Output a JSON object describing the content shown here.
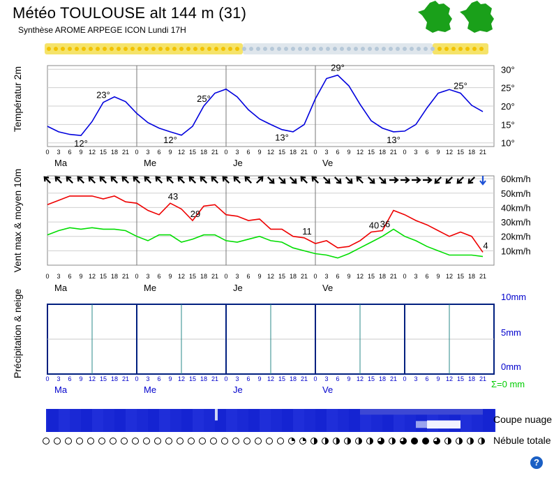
{
  "header": {
    "title": "Météo TOULOUSE alt 144 m (31)",
    "subtitle": "Synthèse AROME ARPEGE ICON  Lundi 17H"
  },
  "labels": {
    "temp_axis": "Températur 2m",
    "wind_axis": "Vent max & moyen 10m",
    "precip_axis": "Précipitation & neige",
    "cloud_section": "Coupe nuage",
    "nebula_section": "Nébule totale",
    "precip_total": "Σ=0 mm",
    "help": "?"
  },
  "days": [
    "Ma",
    "Me",
    "Je",
    "Ve"
  ],
  "hour_ticks": [
    "0",
    "3",
    "6",
    "9",
    "12",
    "15",
    "18",
    "21"
  ],
  "colors": {
    "temperature": "#0000dd",
    "wind_max": "#ee0000",
    "wind_mean": "#00dd00",
    "precip_frame": "#001f7f",
    "precip_labels": "#0000cc",
    "precip_total": "#00cc00",
    "cloud_dark": "#1a2bd8",
    "map_green": "#1aa01a"
  },
  "chart_data": [
    {
      "type": "line",
      "name": "temperature",
      "ylabel": "Températur 2m",
      "y_tick_labels": [
        "30°",
        "25°",
        "20°",
        "15°",
        "10°"
      ],
      "ylim": [
        9,
        31
      ],
      "x_unit": "hours",
      "x": [
        0,
        3,
        6,
        9,
        12,
        15,
        18,
        21,
        24,
        27,
        30,
        33,
        36,
        39,
        42,
        45,
        48,
        51,
        54,
        57,
        60,
        63,
        66,
        69,
        72,
        75,
        78,
        81,
        84,
        87,
        90,
        93,
        96,
        99,
        102,
        105,
        108,
        111,
        114,
        117
      ],
      "values": [
        14.5,
        13,
        12.3,
        12,
        15.8,
        21,
        22.5,
        21.2,
        18,
        15.5,
        14,
        13,
        12.1,
        14.5,
        20,
        23.5,
        24.6,
        22.5,
        19,
        16.5,
        15,
        13.6,
        13,
        15,
        22,
        27.5,
        28.4,
        25.5,
        20.5,
        16,
        14,
        13,
        13.2,
        15,
        19.5,
        23.5,
        24.5,
        23.5,
        20.2,
        18.5
      ],
      "annotations": [
        {
          "x": 9,
          "label": "12°"
        },
        {
          "x": 15,
          "label": "23°"
        },
        {
          "x": 33,
          "label": "12°"
        },
        {
          "x": 42,
          "label": "25°"
        },
        {
          "x": 63,
          "label": "13°"
        },
        {
          "x": 78,
          "label": "29°"
        },
        {
          "x": 93,
          "label": "13°"
        },
        {
          "x": 111,
          "label": "25°"
        }
      ],
      "grid": true
    },
    {
      "type": "line",
      "name": "wind",
      "ylabel": "Vent max & moyen 10m",
      "y_unit": "km/h",
      "y_tick_labels": [
        "60km/h",
        "50km/h",
        "40km/h",
        "30km/h",
        "20km/h",
        "10km/h"
      ],
      "ylim": [
        0,
        62
      ],
      "x_unit": "hours",
      "x": [
        0,
        3,
        6,
        9,
        12,
        15,
        18,
        21,
        24,
        27,
        30,
        33,
        36,
        39,
        42,
        45,
        48,
        51,
        54,
        57,
        60,
        63,
        66,
        69,
        72,
        75,
        78,
        81,
        84,
        87,
        90,
        93,
        96,
        99,
        102,
        105,
        108,
        111,
        114,
        117
      ],
      "series": [
        {
          "name": "max",
          "values": [
            42,
            45,
            48,
            48,
            48,
            46,
            48,
            44,
            43,
            38,
            35,
            43,
            39,
            31,
            41,
            42,
            35,
            34,
            31,
            32,
            25,
            25,
            20,
            19,
            15,
            17,
            12,
            13,
            17,
            23,
            24,
            38,
            35,
            31,
            28,
            24,
            20,
            23,
            20,
            9
          ]
        },
        {
          "name": "moyen",
          "values": [
            21,
            24,
            26,
            25,
            26,
            25,
            25,
            24,
            20,
            17,
            21,
            21,
            16,
            18,
            21,
            21,
            17,
            16,
            18,
            20,
            17,
            16,
            12,
            10,
            8,
            7,
            5,
            8,
            12,
            16,
            20,
            25,
            20,
            17,
            13,
            10,
            7,
            7,
            7,
            6
          ]
        }
      ],
      "annotations": [
        {
          "x": 33,
          "label": "43"
        },
        {
          "x": 39,
          "label": "29"
        },
        {
          "x": 69,
          "label": "11"
        },
        {
          "x": 87,
          "label": "40"
        },
        {
          "x": 90,
          "label": "36"
        },
        {
          "x": 117,
          "label": "4"
        }
      ],
      "wind_direction_arrows": [
        "nw",
        "nw",
        "nw",
        "nw",
        "nw",
        "nw",
        "nw",
        "nw",
        "nw",
        "nw",
        "nw",
        "nw",
        "nw",
        "nw",
        "nw",
        "nw",
        "nw",
        "nw",
        "nw",
        "ne",
        "se",
        "se",
        "se",
        "nw",
        "nw",
        "se",
        "se",
        "se",
        "nw",
        "se",
        "se",
        "e",
        "e",
        "e",
        "e",
        "sw",
        "sw",
        "sw",
        "sw",
        "s"
      ],
      "grid": true
    },
    {
      "type": "bar",
      "name": "precipitation",
      "ylabel": "Précipitation & neige",
      "y_tick_labels": [
        "10mm",
        "5mm",
        "0mm"
      ],
      "ylim": [
        0,
        10
      ],
      "values": [
        0
      ],
      "total_label": "Σ=0 mm"
    },
    {
      "type": "heatmap",
      "name": "cloud_section",
      "label": "Coupe nuage",
      "rows": 4,
      "cloud_cover_levels": [
        [
          1,
          1,
          1,
          1,
          1,
          1,
          1,
          1,
          1,
          1,
          1,
          1,
          1,
          1,
          1,
          1,
          1,
          1,
          1,
          1,
          1,
          1,
          1,
          1,
          1,
          1,
          1,
          1,
          1,
          1,
          1,
          1,
          1,
          1,
          1,
          1,
          1,
          1,
          1,
          1
        ],
        [
          1,
          1,
          1,
          1,
          1,
          1,
          1,
          1,
          1,
          1,
          1,
          1,
          1,
          1,
          1,
          1,
          1,
          1,
          1,
          1,
          1,
          1,
          1,
          1,
          1,
          1,
          1,
          1,
          1,
          1,
          1,
          1,
          1,
          1,
          1,
          1,
          1,
          1,
          1,
          1
        ],
        [
          1,
          1,
          1,
          1,
          1,
          1,
          1,
          1,
          1,
          1,
          1,
          1,
          1,
          1,
          1,
          1,
          1,
          1,
          1,
          1,
          1,
          1,
          1,
          1,
          1,
          1,
          1,
          1,
          1,
          1,
          1,
          1,
          1,
          1,
          1,
          1,
          1,
          1,
          1,
          1
        ],
        [
          1,
          1,
          1,
          1,
          1,
          1,
          1,
          1,
          1,
          1,
          1,
          1,
          1,
          1,
          1,
          1,
          1,
          1,
          1,
          1,
          1,
          1,
          1,
          1,
          1,
          1,
          1,
          1,
          1,
          1,
          1,
          1,
          1,
          1,
          1,
          1,
          1,
          1,
          1,
          1
        ]
      ]
    },
    {
      "type": "table",
      "name": "nebula",
      "label": "Nébule totale",
      "cloud_cover_fraction": [
        0,
        0,
        0,
        0,
        0,
        0,
        0,
        0,
        0,
        0,
        0,
        0,
        0,
        0,
        0,
        0,
        0,
        0,
        0,
        0,
        0,
        0,
        0.25,
        0.25,
        0.5,
        0.5,
        0.5,
        0.5,
        0.5,
        0.5,
        0.75,
        0.5,
        0.75,
        1,
        1,
        0.75,
        0.5,
        0.5,
        0.5,
        0.5
      ]
    }
  ]
}
